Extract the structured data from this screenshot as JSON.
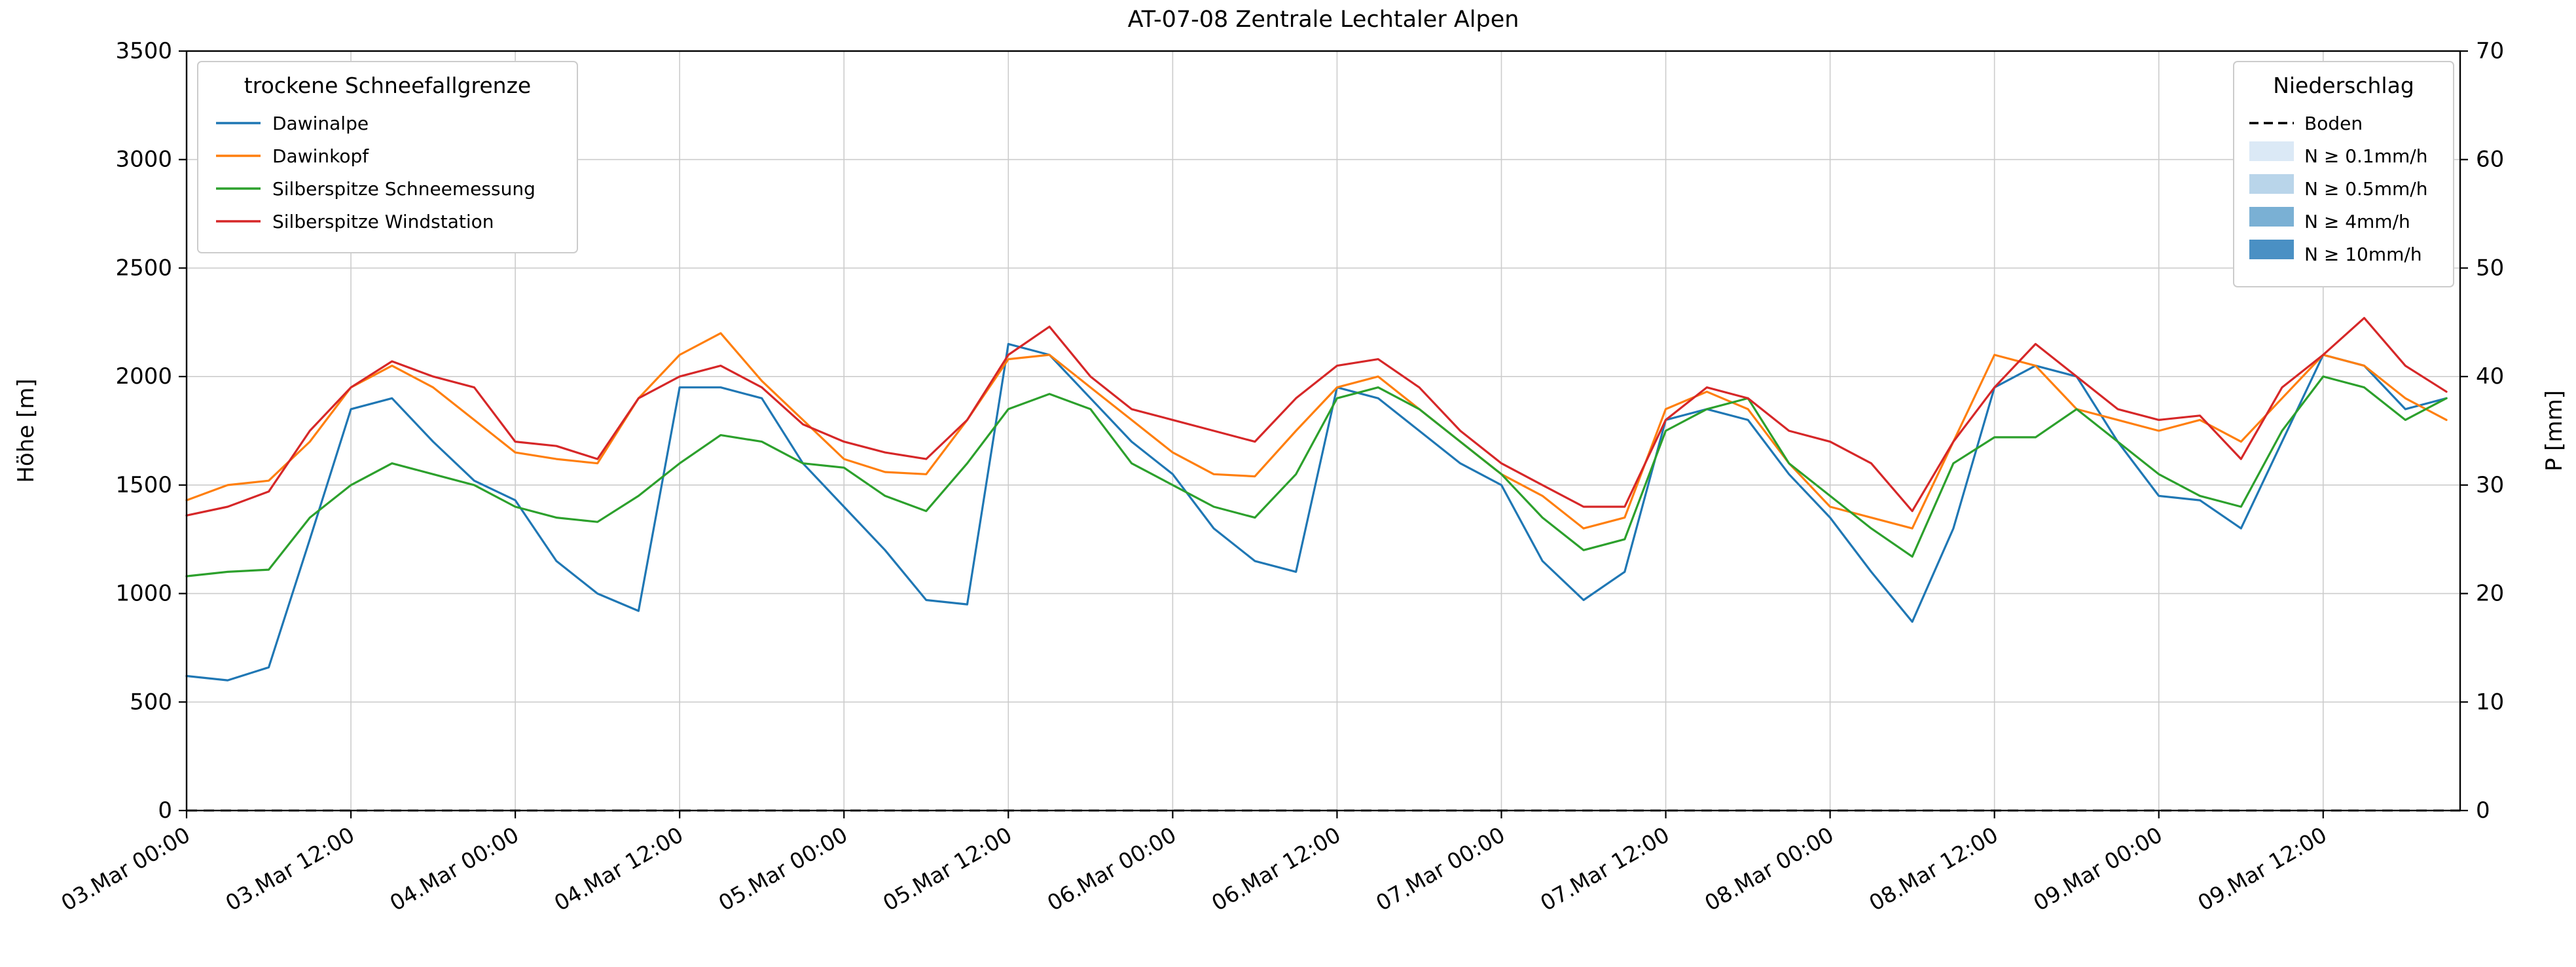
{
  "chart_data": {
    "type": "line",
    "title": "AT-07-08 Zentrale Lechtaler Alpen",
    "ylabel_left": "Höhe [m]",
    "ylabel_right": "P [mm]",
    "ylim_left": [
      0,
      3500
    ],
    "ylim_right": [
      0,
      70
    ],
    "yticks_left": [
      0,
      500,
      1000,
      1500,
      2000,
      2500,
      3000,
      3500
    ],
    "yticks_right": [
      0,
      10,
      20,
      30,
      40,
      50,
      60,
      70
    ],
    "grid": true,
    "x_unit": "hours since 03.Mar 00:00",
    "xlim": [
      0,
      166
    ],
    "xticks": [
      {
        "hour": 0,
        "label": "03.Mar 00:00"
      },
      {
        "hour": 12,
        "label": "03.Mar 12:00"
      },
      {
        "hour": 24,
        "label": "04.Mar 00:00"
      },
      {
        "hour": 36,
        "label": "04.Mar 12:00"
      },
      {
        "hour": 48,
        "label": "05.Mar 00:00"
      },
      {
        "hour": 60,
        "label": "05.Mar 12:00"
      },
      {
        "hour": 72,
        "label": "06.Mar 00:00"
      },
      {
        "hour": 84,
        "label": "06.Mar 12:00"
      },
      {
        "hour": 96,
        "label": "07.Mar 00:00"
      },
      {
        "hour": 108,
        "label": "07.Mar 12:00"
      },
      {
        "hour": 120,
        "label": "08.Mar 00:00"
      },
      {
        "hour": 132,
        "label": "08.Mar 12:00"
      },
      {
        "hour": 144,
        "label": "09.Mar 00:00"
      },
      {
        "hour": 156,
        "label": "09.Mar 12:00"
      }
    ],
    "x_hours": [
      0,
      3,
      6,
      9,
      12,
      15,
      18,
      21,
      24,
      27,
      30,
      33,
      36,
      39,
      42,
      45,
      48,
      51,
      54,
      57,
      60,
      63,
      66,
      69,
      72,
      75,
      78,
      81,
      84,
      87,
      90,
      93,
      96,
      99,
      102,
      105,
      108,
      111,
      114,
      117,
      120,
      123,
      126,
      129,
      132,
      135,
      138,
      141,
      144,
      147,
      150,
      153,
      156,
      159,
      162,
      165
    ],
    "series": [
      {
        "name": "Dawinalpe",
        "color": "#1f77b4",
        "values": [
          620,
          600,
          660,
          1250,
          1850,
          1900,
          1700,
          1520,
          1430,
          1150,
          1000,
          920,
          1950,
          1950,
          1900,
          1600,
          1400,
          1200,
          970,
          950,
          2150,
          2100,
          1900,
          1700,
          1550,
          1300,
          1150,
          1100,
          1950,
          1900,
          1750,
          1600,
          1500,
          1150,
          970,
          1100,
          1800,
          1850,
          1800,
          1550,
          1350,
          1100,
          870,
          1300,
          1950,
          2050,
          2000,
          1700,
          1450,
          1430,
          1300,
          1700,
          2100,
          2050,
          1850,
          1900
        ]
      },
      {
        "name": "Dawinkopf",
        "color": "#ff7f0e",
        "values": [
          1430,
          1500,
          1520,
          1700,
          1950,
          2050,
          1950,
          1800,
          1650,
          1620,
          1600,
          1900,
          2100,
          2200,
          1980,
          1800,
          1620,
          1560,
          1550,
          1800,
          2080,
          2100,
          1950,
          1800,
          1650,
          1550,
          1540,
          1750,
          1950,
          2000,
          1850,
          1700,
          1550,
          1450,
          1300,
          1350,
          1850,
          1930,
          1850,
          1600,
          1400,
          1350,
          1300,
          1700,
          2100,
          2050,
          1850,
          1800,
          1750,
          1800,
          1700,
          1900,
          2100,
          2050,
          1900,
          1800
        ]
      },
      {
        "name": "Silberspitze Schneemessung",
        "color": "#2ca02c",
        "values": [
          1080,
          1100,
          1110,
          1350,
          1500,
          1600,
          1550,
          1500,
          1400,
          1350,
          1330,
          1450,
          1600,
          1730,
          1700,
          1600,
          1580,
          1450,
          1380,
          1600,
          1850,
          1920,
          1850,
          1600,
          1500,
          1400,
          1350,
          1550,
          1900,
          1950,
          1850,
          1700,
          1550,
          1350,
          1200,
          1250,
          1750,
          1850,
          1900,
          1600,
          1450,
          1300,
          1170,
          1600,
          1720,
          1720,
          1850,
          1700,
          1550,
          1450,
          1400,
          1750,
          2000,
          1950,
          1800,
          1900
        ]
      },
      {
        "name": "Silberspitze Windstation",
        "color": "#d62728",
        "values": [
          1360,
          1400,
          1470,
          1750,
          1950,
          2070,
          2000,
          1950,
          1700,
          1680,
          1620,
          1900,
          2000,
          2050,
          1950,
          1780,
          1700,
          1650,
          1620,
          1800,
          2100,
          2230,
          2000,
          1850,
          1800,
          1750,
          1700,
          1900,
          2050,
          2080,
          1950,
          1750,
          1600,
          1500,
          1400,
          1400,
          1800,
          1950,
          1900,
          1750,
          1700,
          1600,
          1380,
          1700,
          1950,
          2150,
          2000,
          1850,
          1800,
          1820,
          1620,
          1950,
          2100,
          2270,
          2050,
          1930
        ]
      }
    ],
    "boden_line": {
      "label": "Boden",
      "axis": "right",
      "value": 0,
      "style": "dashed",
      "color": "#000000"
    },
    "legend_left": {
      "title": "trockene Schneefallgrenze",
      "position": "upper left",
      "entries": [
        {
          "label": "Dawinalpe",
          "color": "#1f77b4",
          "type": "line"
        },
        {
          "label": "Dawinkopf",
          "color": "#ff7f0e",
          "type": "line"
        },
        {
          "label": "Silberspitze Schneemessung",
          "color": "#2ca02c",
          "type": "line"
        },
        {
          "label": "Silberspitze Windstation",
          "color": "#d62728",
          "type": "line"
        }
      ]
    },
    "legend_right": {
      "title": "Niederschlag",
      "position": "upper right",
      "entries": [
        {
          "label": "Boden",
          "color": "#000000",
          "type": "dashed-line"
        },
        {
          "label": "N ≥ 0.1mm/h",
          "color": "#dbe9f6",
          "type": "patch"
        },
        {
          "label": "N ≥ 0.5mm/h",
          "color": "#b9d5ea",
          "type": "patch"
        },
        {
          "label": "N ≥ 4mm/h",
          "color": "#7ab0d4",
          "type": "patch"
        },
        {
          "label": "N ≥ 10mm/h",
          "color": "#4a90c4",
          "type": "patch"
        }
      ]
    },
    "colors": {
      "grid": "#cccccc",
      "axes": "#000000",
      "background": "#ffffff"
    }
  }
}
